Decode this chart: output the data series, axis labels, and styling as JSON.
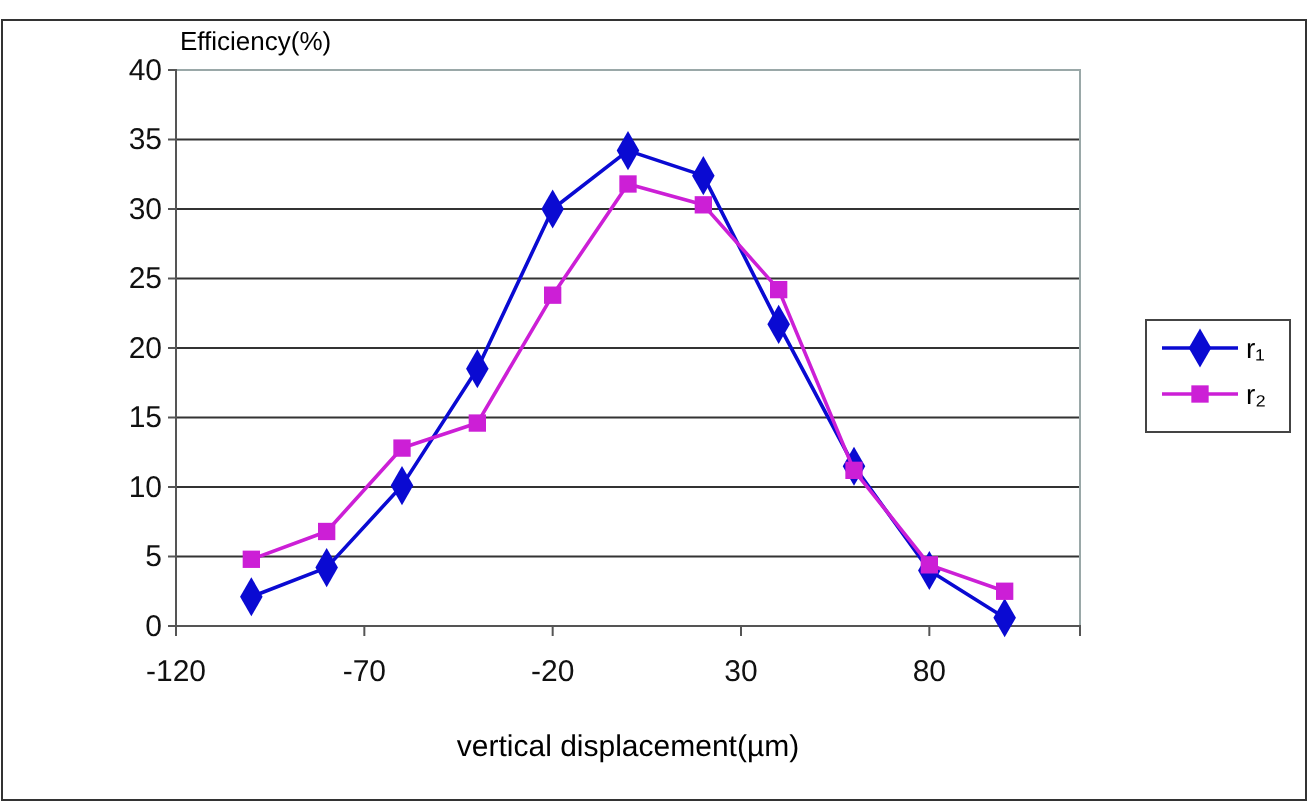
{
  "chart_data": {
    "type": "line",
    "ylabel": "Efficiency(%)",
    "xlabel": "vertical displacement(µm)",
    "x": [
      -100,
      -80,
      -60,
      -40,
      -20,
      0,
      20,
      40,
      60,
      80,
      100
    ],
    "xlim": [
      -120,
      120
    ],
    "xticks": [
      -120,
      -70,
      -20,
      30,
      80
    ],
    "ylim": [
      0,
      40
    ],
    "yticks": [
      0,
      5,
      10,
      15,
      20,
      25,
      30,
      35,
      40
    ],
    "grid": "y",
    "legend": "right",
    "series": [
      {
        "name": "r₁",
        "color": "#0a0ad2",
        "marker": "diamond",
        "values": [
          2.1,
          4.2,
          10.1,
          18.5,
          30,
          34.2,
          32.4,
          21.7,
          11.5,
          4.0,
          0.6
        ]
      },
      {
        "name": "r₂",
        "color": "#cc1fd6",
        "marker": "square",
        "values": [
          4.8,
          6.8,
          12.8,
          14.6,
          23.8,
          31.8,
          30.3,
          24.2,
          11.2,
          4.4,
          2.5
        ]
      }
    ]
  }
}
